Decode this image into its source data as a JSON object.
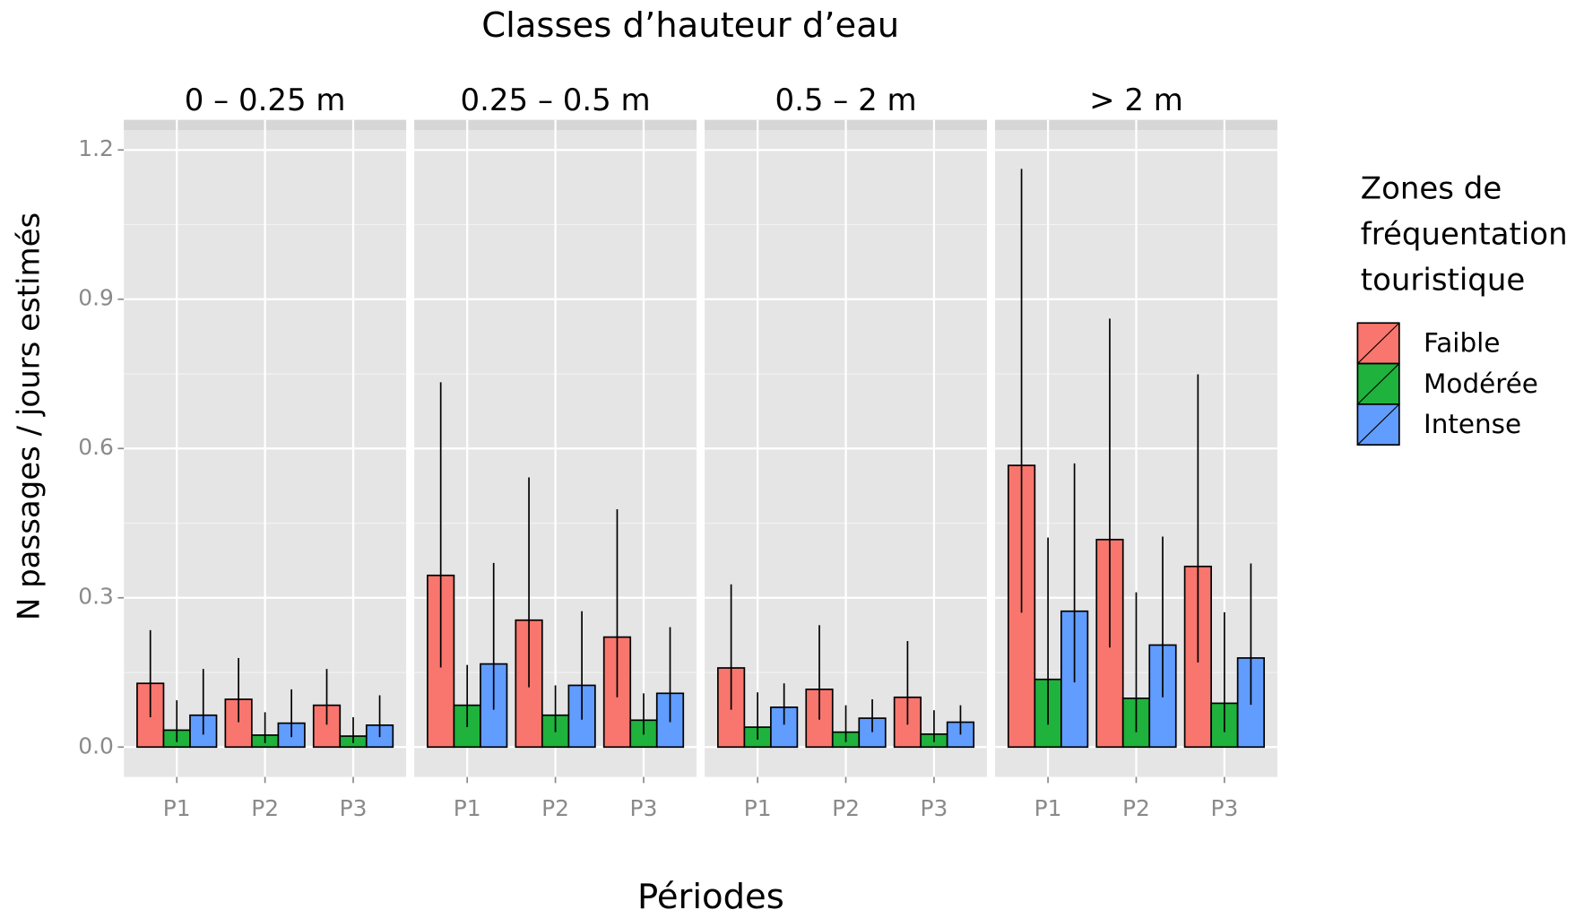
{
  "chart_data": {
    "type": "bar",
    "title": "Classes d’hauteur d’eau",
    "x_label": "Périodes",
    "y_label": "N passages / jours estimés",
    "legend_title": [
      "Zones de",
      "fréquentation",
      "touristique"
    ],
    "facets": [
      "0 – 0.25 m",
      "0.25 – 0.5 m",
      "0.5 – 2 m",
      "> 2  m"
    ],
    "categories": [
      "P1",
      "P2",
      "P3"
    ],
    "ylim": [
      -0.06,
      1.24
    ],
    "yticks": [
      {
        "value": 0,
        "label": "0.0"
      },
      0.3,
      0.6,
      0.9,
      1.2
    ],
    "grid": true,
    "series": [
      {
        "name": "Faible",
        "color": "#f8766d",
        "values": [
          [
            0.128,
            0.096,
            0.084
          ],
          [
            0.345,
            0.255,
            0.221
          ],
          [
            0.159,
            0.116,
            0.1
          ],
          [
            0.566,
            0.417,
            0.363
          ]
        ],
        "lower": [
          [
            0.06,
            0.05,
            0.045
          ],
          [
            0.16,
            0.12,
            0.1
          ],
          [
            0.075,
            0.055,
            0.045
          ],
          [
            0.27,
            0.2,
            0.17
          ]
        ],
        "upper": [
          [
            0.235,
            0.179,
            0.157
          ],
          [
            0.733,
            0.542,
            0.478
          ],
          [
            0.327,
            0.245,
            0.213
          ],
          [
            1.162,
            0.861,
            0.749
          ]
        ]
      },
      {
        "name": "Modérée",
        "color": "#1fb23c",
        "values": [
          [
            0.034,
            0.024,
            0.022
          ],
          [
            0.084,
            0.064,
            0.054
          ],
          [
            0.04,
            0.03,
            0.026
          ],
          [
            0.136,
            0.098,
            0.088
          ]
        ],
        "lower": [
          [
            0.01,
            0.008,
            0.008
          ],
          [
            0.04,
            0.03,
            0.025
          ],
          [
            0.015,
            0.01,
            0.01
          ],
          [
            0.045,
            0.03,
            0.03
          ]
        ],
        "upper": [
          [
            0.094,
            0.07,
            0.06
          ],
          [
            0.165,
            0.124,
            0.108
          ],
          [
            0.11,
            0.084,
            0.074
          ],
          [
            0.421,
            0.311,
            0.271
          ]
        ]
      },
      {
        "name": "Intense",
        "color": "#619cff",
        "values": [
          [
            0.064,
            0.048,
            0.044
          ],
          [
            0.167,
            0.124,
            0.108
          ],
          [
            0.08,
            0.058,
            0.05
          ],
          [
            0.273,
            0.205,
            0.179
          ]
        ],
        "lower": [
          [
            0.025,
            0.02,
            0.02
          ],
          [
            0.075,
            0.055,
            0.05
          ],
          [
            0.045,
            0.03,
            0.025
          ],
          [
            0.13,
            0.1,
            0.085
          ]
        ],
        "upper": [
          [
            0.157,
            0.116,
            0.104
          ],
          [
            0.37,
            0.273,
            0.241
          ],
          [
            0.128,
            0.096,
            0.084
          ],
          [
            0.57,
            0.423,
            0.369
          ]
        ]
      }
    ]
  }
}
